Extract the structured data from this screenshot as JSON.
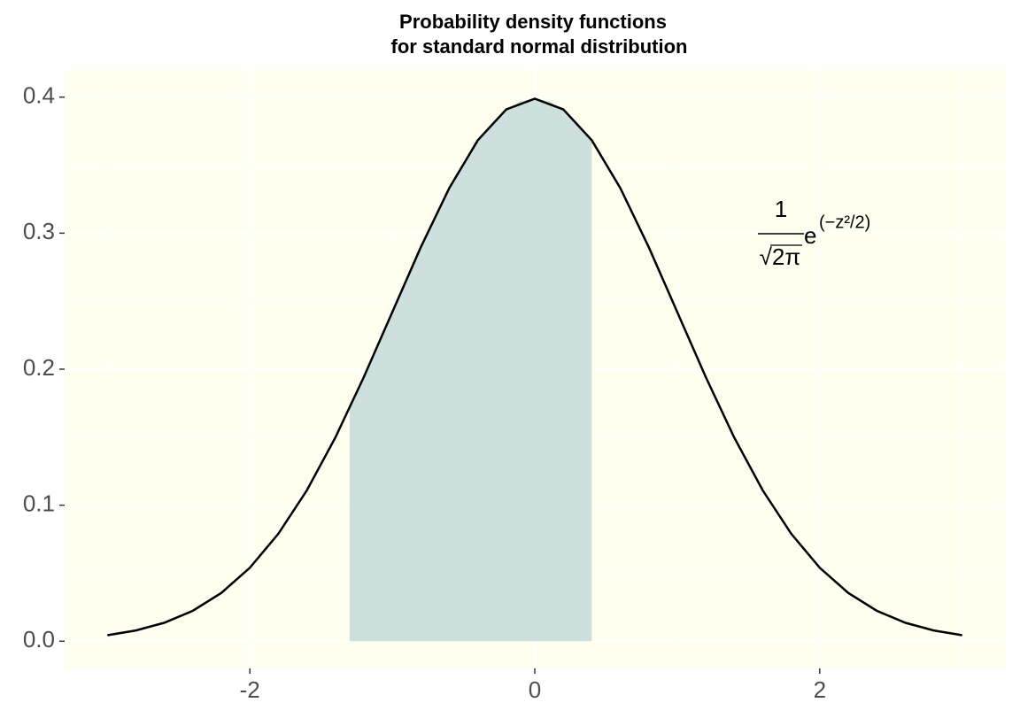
{
  "chart_data": {
    "type": "line",
    "title": "Probability density functions",
    "subtitle": "for standard normal distribution",
    "x": [
      -3,
      -2.8,
      -2.6,
      -2.4,
      -2.2,
      -2,
      -1.8,
      -1.6,
      -1.4,
      -1.2,
      -1,
      -0.8,
      -0.6,
      -0.4,
      -0.2,
      0,
      0.2,
      0.4,
      0.6,
      0.8,
      1,
      1.2,
      1.4,
      1.6,
      1.8,
      2,
      2.2,
      2.4,
      2.6,
      2.8,
      3
    ],
    "values": [
      0.0044,
      0.0079,
      0.0136,
      0.0224,
      0.0355,
      0.054,
      0.079,
      0.1109,
      0.1497,
      0.1942,
      0.242,
      0.2897,
      0.3332,
      0.3683,
      0.391,
      0.3989,
      0.391,
      0.3683,
      0.3332,
      0.2897,
      0.242,
      0.1942,
      0.1497,
      0.1109,
      0.079,
      0.054,
      0.0355,
      0.0224,
      0.0136,
      0.0079,
      0.0044
    ],
    "color": "#000000",
    "area": {
      "x": [
        -1.3,
        -1.2,
        -1.1,
        -1,
        -0.9,
        -0.8,
        -0.7,
        -0.6,
        -0.5,
        -0.4,
        -0.3,
        -0.2,
        -0.1,
        0,
        0.1,
        0.2,
        0.3,
        0.4
      ],
      "values": [
        0.1714,
        0.1942,
        0.2179,
        0.242,
        0.2661,
        0.2897,
        0.3123,
        0.3332,
        0.3521,
        0.3683,
        0.3814,
        0.391,
        0.397,
        0.3989,
        0.397,
        0.391,
        0.3814,
        0.3683
      ],
      "color": "#cde0de"
    },
    "xlim": [
      -3.3,
      3.3
    ],
    "ylim": [
      -0.02,
      0.42
    ],
    "xticks": [
      -2,
      0,
      2
    ],
    "yticks": [
      {
        "value": 0,
        "label": "0.0"
      },
      0.1,
      0.2,
      0.3,
      0.4
    ],
    "xminor": [
      -3,
      -1,
      1,
      3
    ],
    "yminor": [
      0.05,
      0.15,
      0.25,
      0.35
    ],
    "grid": true,
    "background": "#fffff0",
    "annotation": {
      "numerator": "1",
      "denominator": "√2π",
      "base": "e",
      "exponent": "(−z²/2)"
    }
  }
}
